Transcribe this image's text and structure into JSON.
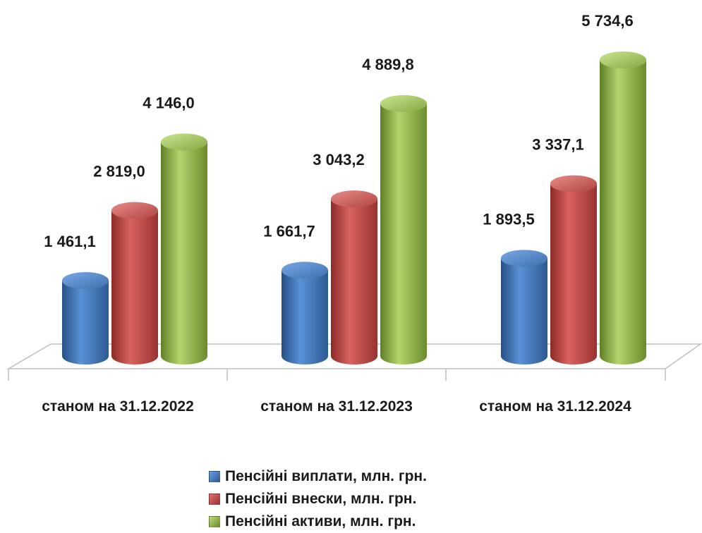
{
  "chart_data": {
    "type": "bar",
    "title": "",
    "xlabel": "",
    "ylabel": "",
    "categories": [
      "станом на 31.12.2022",
      "станом на 31.12.2023",
      "станом на 31.12.2024"
    ],
    "series": [
      {
        "name": "Пенсійні виплати, млн. грн.",
        "values": [
          1461.1,
          1661.7,
          1893.5
        ],
        "labels": [
          "1 461,1",
          "1 661,7",
          "1 893,5"
        ],
        "color": "#4a7ebb"
      },
      {
        "name": "Пенсійні внески, млн. грн.",
        "values": [
          2819.0,
          3043.2,
          3337.1
        ],
        "labels": [
          "2 819,0",
          "3 043,2",
          "3 337,1"
        ],
        "color": "#be4b48"
      },
      {
        "name": "Пенсійні активи, млн. грн.",
        "values": [
          4146.0,
          4889.8,
          5734.6
        ],
        "labels": [
          "4 146,0",
          "4 889,8",
          "5 734,6"
        ],
        "color": "#98b954"
      }
    ],
    "ylim": [
      0,
      5734.6
    ],
    "grid": false,
    "legend_position": "bottom",
    "style": "3d-cylinder"
  }
}
